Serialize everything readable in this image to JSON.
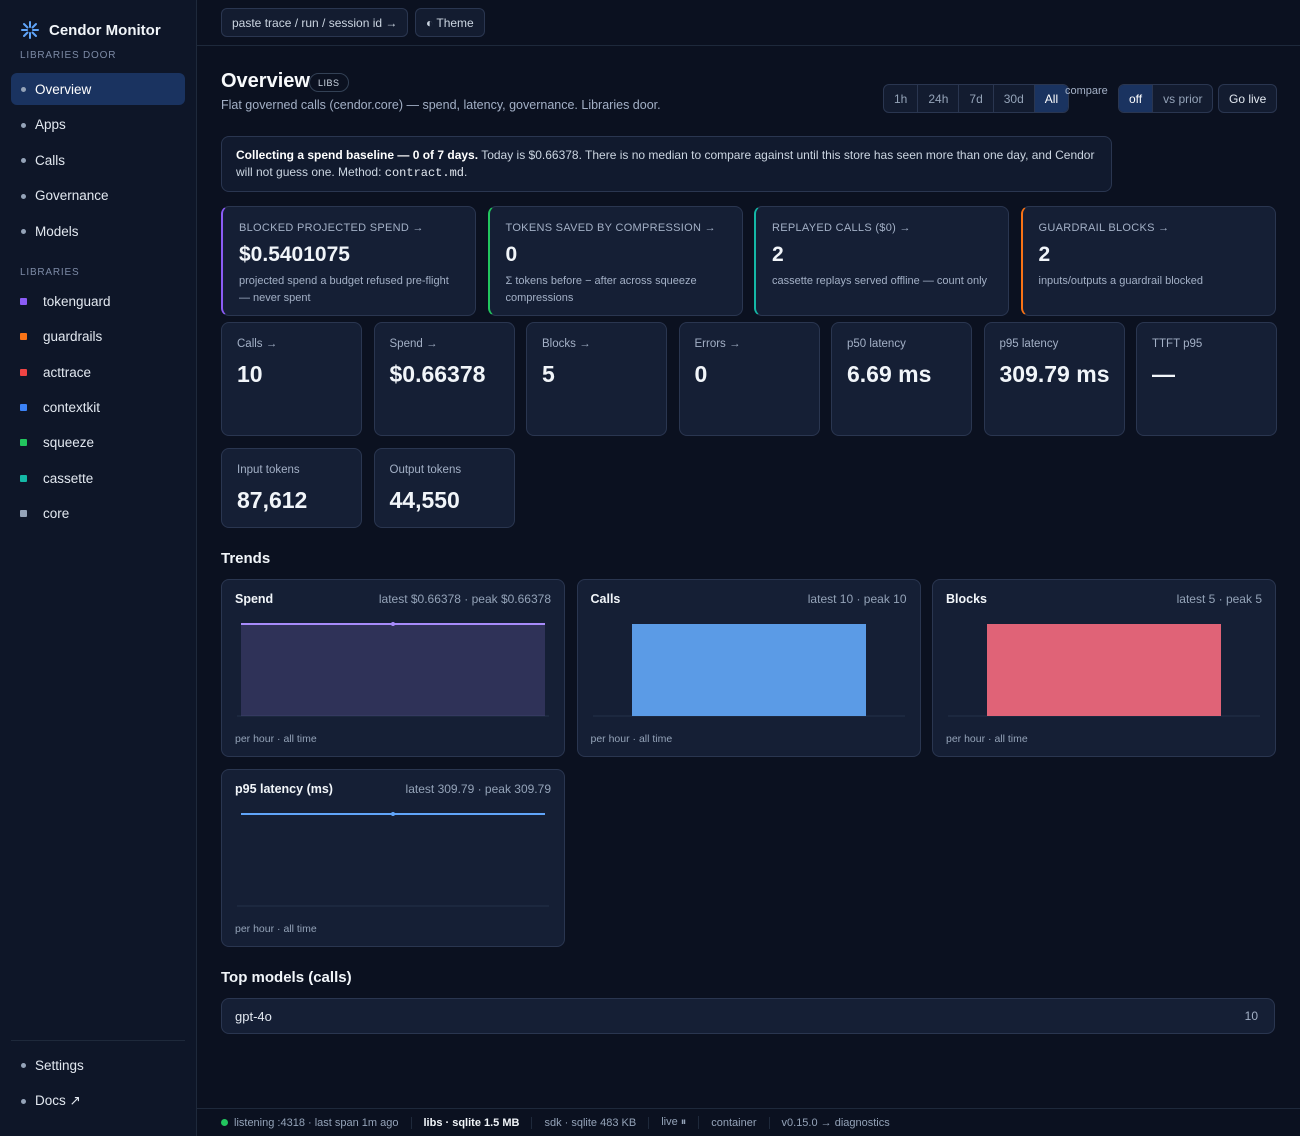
{
  "sidebar": {
    "brand": "Cendor Monitor",
    "subtitle": "LIBRARIES DOOR",
    "nav": [
      "Overview",
      "Apps",
      "Calls",
      "Governance",
      "Models"
    ],
    "active": "Overview",
    "libraries_heading": "LIBRARIES",
    "libraries": [
      {
        "name": "tokenguard",
        "color": "#8b5cf6"
      },
      {
        "name": "guardrails",
        "color": "#f97316"
      },
      {
        "name": "acttrace",
        "color": "#ef4444"
      },
      {
        "name": "contextkit",
        "color": "#3b82f6"
      },
      {
        "name": "squeeze",
        "color": "#22c55e"
      },
      {
        "name": "cassette",
        "color": "#14b8a6"
      },
      {
        "name": "core",
        "color": "#94a3b8"
      }
    ],
    "footer_nav": [
      "Settings",
      "Docs ↗"
    ]
  },
  "topbar": {
    "search": "paste trace / run / session id →",
    "theme": "◐ Theme"
  },
  "header": {
    "title": "Overview",
    "badge": "LIBS",
    "subtitle": "Flat governed calls (cendor.core) — spend, latency, governance. Libraries door.",
    "ranges": [
      "1h",
      "24h",
      "7d",
      "30d",
      "All"
    ],
    "active_range": "All",
    "compare_label": "compare",
    "compare": [
      "off",
      "vs prior"
    ],
    "active_compare": "off",
    "go_live": "Go live"
  },
  "notice": {
    "bold": "Collecting a spend baseline — 0 of 7 days.",
    "text": " Today is $0.66378. There is no median to compare against until this store has seen more than one day, and Cendor will not guess one. Method: ",
    "code": "contract.md",
    "end": "."
  },
  "feature_cards": [
    {
      "label": "BLOCKED PROJECTED SPEND →",
      "value": "$0.5401075",
      "note": "projected spend a budget refused pre-flight — never spent",
      "color": "#8b5cf6"
    },
    {
      "label": "TOKENS SAVED BY COMPRESSION →",
      "value": "0",
      "note": "Σ tokens before − after across squeeze compressions",
      "color": "#22c55e"
    },
    {
      "label": "REPLAYED CALLS ($0) →",
      "value": "2",
      "note": "cassette replays served offline — count only",
      "color": "#14b8a6"
    },
    {
      "label": "GUARDRAIL BLOCKS →",
      "value": "2",
      "note": "inputs/outputs a guardrail blocked",
      "color": "#f97316"
    }
  ],
  "stats": [
    {
      "label": "Calls →",
      "value": "10"
    },
    {
      "label": "Spend →",
      "value": "$0.66378"
    },
    {
      "label": "Blocks →",
      "value": "5"
    },
    {
      "label": "Errors →",
      "value": "0"
    },
    {
      "label": "p50 latency",
      "value": "6.69 ms"
    },
    {
      "label": "p95 latency",
      "value": "309.79 ms"
    },
    {
      "label": "TTFT p95",
      "value": "—"
    },
    {
      "label": "Input tokens",
      "value": "87,612"
    },
    {
      "label": "Output tokens",
      "value": "44,550"
    }
  ],
  "trends": {
    "heading": "Trends",
    "charts": [
      {
        "title": "Spend",
        "summary": "latest $0.66378 · peak $0.66378",
        "footer": "per hour · all time",
        "kind": "line",
        "color": "#a78bfa",
        "values": [
          0.66378
        ]
      },
      {
        "title": "Calls",
        "summary": "latest 10 · peak 10",
        "footer": "per hour · all time",
        "kind": "bar",
        "color": "#5b9be6",
        "values": [
          10
        ]
      },
      {
        "title": "Blocks",
        "summary": "latest 5 · peak 5",
        "footer": "per hour · all time",
        "kind": "bar",
        "color": "#e06377",
        "values": [
          5
        ]
      },
      {
        "title": "p95 latency (ms)",
        "summary": "latest 309.79 · peak 309.79",
        "footer": "per hour · all time",
        "kind": "line",
        "color": "#60a5fa",
        "values": [
          309.79
        ]
      }
    ]
  },
  "top_models": {
    "heading": "Top models (calls)",
    "rows": [
      {
        "name": "gpt-4o",
        "count": 10
      }
    ]
  },
  "status_bar": [
    {
      "text": "listening :4318 · last span 1m ago",
      "dot": "#22c55e"
    },
    {
      "text": "libs · sqlite 1.5 MB",
      "bold": true
    },
    {
      "text": "sdk · sqlite 483 KB"
    },
    {
      "text": "live ⏸"
    },
    {
      "text": "container"
    },
    {
      "text": "v0.15.0 → diagnostics"
    }
  ]
}
